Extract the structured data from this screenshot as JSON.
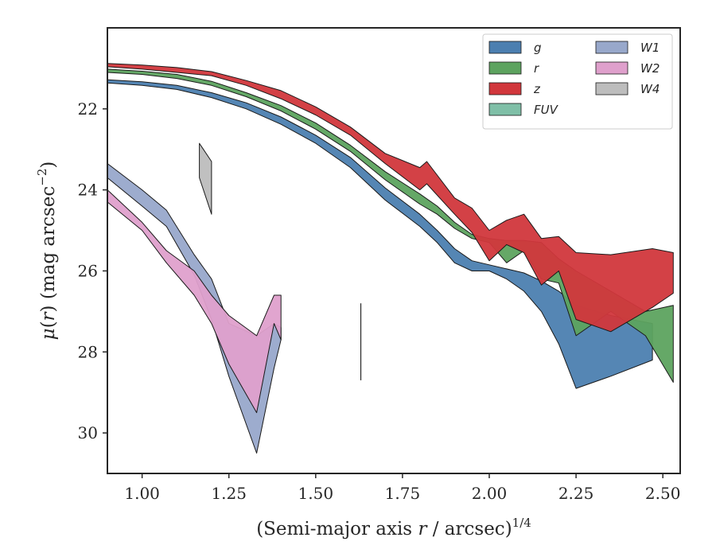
{
  "chart_data": {
    "type": "area",
    "xlabel": "(Semi-major axis r / arcsec)^(1/4)",
    "xlabel_parts": {
      "main": "(Semi-major axis ",
      "var": "r",
      "rest": " / arcsec)",
      "sup": "1/4"
    },
    "ylabel": "μ(r) (mag arcsec^−2)",
    "ylabel_parts": {
      "mu": "μ",
      "open": "(",
      "var": "r",
      "close": ") (mag arcsec",
      "sup": "−2",
      "end": ")"
    },
    "xlim": [
      0.9,
      2.55
    ],
    "ylim": [
      31.0,
      20.0
    ],
    "y_inverted": true,
    "grid": false,
    "legend_position": "top-right",
    "x_ticks": [
      1.0,
      1.25,
      1.5,
      1.75,
      2.0,
      2.25,
      2.5
    ],
    "x_tick_labels": [
      "1.00",
      "1.25",
      "1.50",
      "1.75",
      "2.00",
      "2.25",
      "2.50"
    ],
    "y_ticks": [
      22,
      24,
      26,
      28,
      30
    ],
    "y_tick_labels": [
      "22",
      "24",
      "26",
      "28",
      "30"
    ],
    "series": [
      {
        "name": "g",
        "color": "#4c7fb0",
        "x": [
          0.9,
          1.0,
          1.1,
          1.2,
          1.3,
          1.4,
          1.5,
          1.6,
          1.7,
          1.8,
          1.85,
          1.9,
          1.95,
          2.0,
          2.05,
          2.1,
          2.15,
          2.2,
          2.25,
          2.35,
          2.47
        ],
        "lower": [
          21.28,
          21.33,
          21.42,
          21.6,
          21.85,
          22.2,
          22.65,
          23.2,
          23.95,
          24.6,
          25.0,
          25.45,
          25.75,
          25.85,
          25.95,
          26.05,
          26.25,
          26.5,
          26.85,
          27.1,
          27.3
        ],
        "upper": [
          21.36,
          21.42,
          21.52,
          21.72,
          22.0,
          22.38,
          22.85,
          23.45,
          24.25,
          24.9,
          25.3,
          25.8,
          26.0,
          26.0,
          26.2,
          26.5,
          27.0,
          27.8,
          28.9,
          28.6,
          28.2
        ]
      },
      {
        "name": "r",
        "color": "#5da35f",
        "x": [
          0.9,
          1.0,
          1.1,
          1.2,
          1.3,
          1.4,
          1.5,
          1.6,
          1.7,
          1.8,
          1.85,
          1.9,
          1.95,
          2.0,
          2.05,
          2.1,
          2.15,
          2.2,
          2.25,
          2.35,
          2.45,
          2.53
        ],
        "lower": [
          21.02,
          21.07,
          21.15,
          21.32,
          21.6,
          21.92,
          22.35,
          22.9,
          23.55,
          24.1,
          24.4,
          24.8,
          25.1,
          25.2,
          25.25,
          25.25,
          25.3,
          25.7,
          26.0,
          26.5,
          27.0,
          26.85
        ],
        "upper": [
          21.1,
          21.15,
          21.25,
          21.42,
          21.7,
          22.05,
          22.5,
          23.05,
          23.75,
          24.35,
          24.6,
          24.95,
          25.2,
          25.3,
          25.8,
          25.5,
          26.2,
          26.3,
          27.6,
          27.0,
          27.6,
          28.75
        ]
      },
      {
        "name": "z",
        "color": "#d1373c",
        "x": [
          0.9,
          1.0,
          1.1,
          1.2,
          1.3,
          1.4,
          1.5,
          1.6,
          1.7,
          1.8,
          1.82,
          1.9,
          1.95,
          2.0,
          2.05,
          2.1,
          2.15,
          2.2,
          2.25,
          2.35,
          2.47,
          2.53
        ],
        "lower": [
          20.88,
          20.92,
          20.98,
          21.08,
          21.3,
          21.55,
          21.95,
          22.45,
          23.1,
          23.45,
          23.3,
          24.2,
          24.45,
          25.0,
          24.75,
          24.6,
          25.2,
          25.15,
          25.55,
          25.6,
          25.45,
          25.55
        ],
        "upper": [
          20.96,
          21.02,
          21.1,
          21.18,
          21.42,
          21.75,
          22.15,
          22.65,
          23.35,
          24.0,
          23.85,
          24.6,
          25.05,
          25.75,
          25.35,
          25.55,
          26.35,
          26.0,
          27.2,
          27.5,
          26.9,
          26.55
        ]
      },
      {
        "name": "FUV",
        "color": "#7fbfa7",
        "x": [
          1.63
        ],
        "lower": [
          26.8
        ],
        "upper": [
          28.7
        ]
      },
      {
        "name": "W1",
        "color": "#98a8cb",
        "x": [
          0.9,
          1.0,
          1.07,
          1.15,
          1.2,
          1.25,
          1.33,
          1.38,
          1.4
        ],
        "lower": [
          23.35,
          24.0,
          24.5,
          25.6,
          26.2,
          27.3,
          27.6,
          27.3,
          27.4
        ],
        "upper": [
          23.7,
          24.4,
          24.9,
          26.1,
          27.2,
          28.6,
          30.5,
          28.4,
          27.7
        ]
      },
      {
        "name": "W2",
        "color": "#dfa0cc",
        "x": [
          0.9,
          1.0,
          1.07,
          1.15,
          1.2,
          1.25,
          1.33,
          1.38,
          1.4
        ],
        "lower": [
          24.0,
          24.8,
          25.5,
          26.0,
          26.6,
          27.1,
          27.6,
          26.6,
          26.6
        ],
        "upper": [
          24.3,
          25.0,
          25.8,
          26.6,
          27.3,
          28.3,
          29.5,
          27.3,
          27.7
        ]
      },
      {
        "name": "W4",
        "color": "#bdbdbd",
        "x": [
          1.165,
          1.2
        ],
        "lower": [
          22.85,
          23.3
        ],
        "upper": [
          23.7,
          24.6
        ]
      }
    ]
  }
}
